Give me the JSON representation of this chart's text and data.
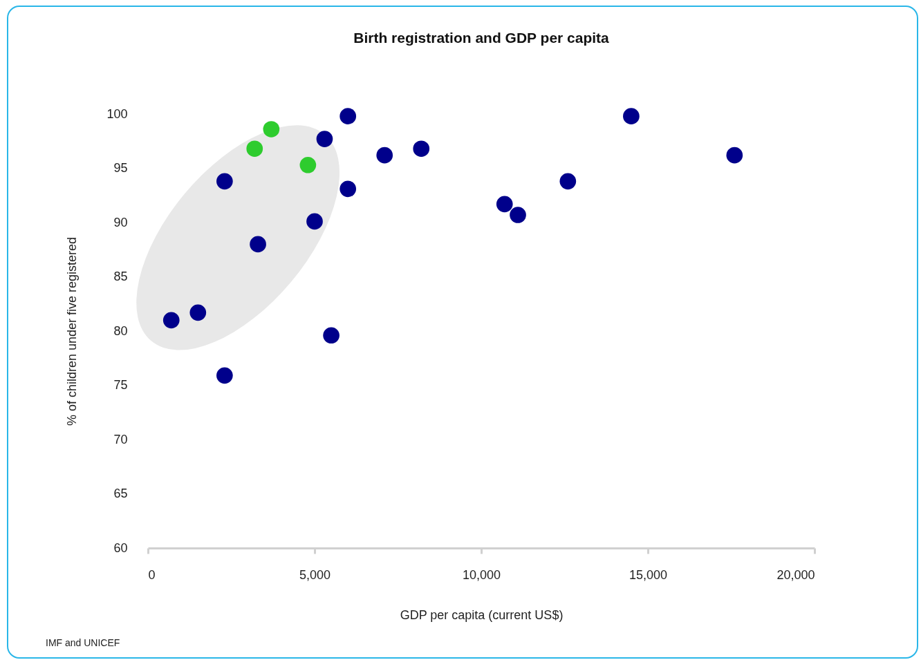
{
  "chart_data": {
    "type": "scatter",
    "title": "Birth registration and GDP per capita",
    "xlabel": "GDP per capita (current US$)",
    "ylabel": "% of children under five registered",
    "annotations": [
      "IMF and UNICEF"
    ],
    "series": [
      {
        "color": "#00008b",
        "x": [
          700,
          1500,
          2300,
          2300,
          3300,
          5000,
          5300,
          5500,
          6000,
          6000,
          7100,
          8200,
          10700,
          11100,
          12600,
          14500,
          17600
        ],
        "values": [
          81.0,
          81.7,
          75.9,
          93.8,
          88.0,
          90.1,
          97.7,
          79.6,
          99.8,
          93.1,
          96.2,
          96.8,
          91.7,
          90.7,
          93.8,
          99.8,
          96.2
        ]
      },
      {
        "color": "#2ecc2e",
        "x": [
          3200,
          3700,
          4800
        ],
        "values": [
          96.8,
          98.6,
          95.3
        ]
      }
    ],
    "xlim": [
      0,
      20000
    ],
    "xticks": [
      0,
      {
        "value": 5000,
        "label": "5,000"
      },
      {
        "value": 10000,
        "label": "10,000"
      },
      {
        "value": 15000,
        "label": "15,000"
      },
      {
        "value": 20000,
        "label": "20,000"
      }
    ],
    "ylim": [
      60,
      100
    ],
    "yticks": [
      60,
      65,
      70,
      75,
      80,
      85,
      90,
      95,
      100
    ],
    "marker": "circle",
    "grid": false,
    "legend": false
  }
}
